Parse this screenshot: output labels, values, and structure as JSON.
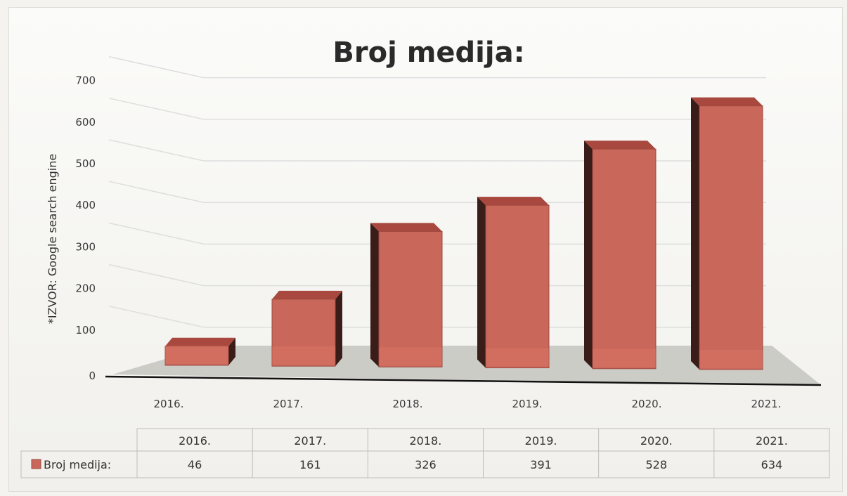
{
  "chart_data": {
    "type": "bar",
    "title": "Broj medija:",
    "ylabel": "*IZVOR: Google search engine",
    "xlabel": "",
    "categories": [
      "2016.",
      "2017.",
      "2018.",
      "2019.",
      "2020.",
      "2021."
    ],
    "series": [
      {
        "name": "Broj medija:",
        "values": [
          46,
          161,
          326,
          391,
          528,
          634
        ]
      }
    ],
    "value_labels": [
      "46",
      "161",
      "326",
      "391",
      "528",
      "634"
    ],
    "ylim": [
      0,
      700
    ],
    "yticks": [
      0,
      100,
      200,
      300,
      400,
      500,
      600,
      700
    ],
    "grid": true,
    "legend": "data-table-below",
    "colors": {
      "bar_front": "#c9675a",
      "bar_top": "#a9483e",
      "bar_side": "#3a1c18",
      "floor": "#c4c4c0",
      "grid": "#dedede"
    }
  }
}
